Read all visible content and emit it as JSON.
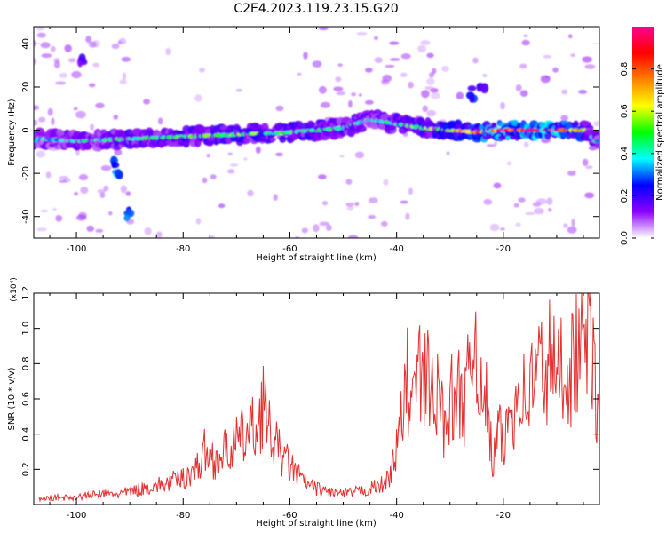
{
  "title": "C2E4.2023.119.23.15.G20",
  "chart_data": [
    {
      "type": "heatmap",
      "xlabel": "Height of straight line (km)",
      "ylabel": "Frequency (Hz)",
      "xlim": [
        -108,
        -2
      ],
      "ylim": [
        -50,
        48
      ],
      "xticks": [
        -100,
        -80,
        -60,
        -40,
        -20
      ],
      "yticks": [
        -40,
        -20,
        0,
        20,
        40
      ],
      "colorbar": {
        "label": "Normalized spectral amplitude",
        "range": [
          0,
          1
        ],
        "ticks": [
          0.0,
          0.2,
          0.4,
          0.6,
          0.8
        ],
        "colormap": [
          "#ffffff",
          "#8b00ff",
          "#0000ff",
          "#00ffff",
          "#00ff00",
          "#ffff00",
          "#ff8000",
          "#ff0000",
          "#ff0090"
        ]
      },
      "ridge": [
        {
          "x": -107,
          "y": -4,
          "v": 0.35
        },
        {
          "x": -100,
          "y": -5,
          "v": 0.4
        },
        {
          "x": -90,
          "y": -4,
          "v": 0.45
        },
        {
          "x": -80,
          "y": -3,
          "v": 0.5
        },
        {
          "x": -70,
          "y": -2,
          "v": 0.55
        },
        {
          "x": -60,
          "y": -1,
          "v": 0.5
        },
        {
          "x": -50,
          "y": 1,
          "v": 0.45
        },
        {
          "x": -45,
          "y": 5,
          "v": 0.4
        },
        {
          "x": -40,
          "y": 3,
          "v": 0.45
        },
        {
          "x": -35,
          "y": 1,
          "v": 0.55
        },
        {
          "x": -30,
          "y": 0,
          "v": 0.65
        },
        {
          "x": -25,
          "y": -1,
          "v": 0.75
        },
        {
          "x": -20,
          "y": 0,
          "v": 0.95
        },
        {
          "x": -10,
          "y": 0,
          "v": 0.95
        },
        {
          "x": -4,
          "y": 0,
          "v": 0.6
        },
        {
          "x": -3,
          "y": -5,
          "v": 0.4
        }
      ],
      "features": [
        {
          "x": -92,
          "y": -20,
          "v": 0.35
        },
        {
          "x": -93,
          "y": -15,
          "v": 0.3
        },
        {
          "x": -90,
          "y": -39,
          "v": 0.3
        },
        {
          "x": -99,
          "y": 32,
          "v": 0.2
        },
        {
          "x": -26,
          "y": 17,
          "v": 0.3
        },
        {
          "x": -24,
          "y": 18,
          "v": 0.25
        }
      ]
    },
    {
      "type": "line",
      "xlabel": "Height of straight line (km)",
      "ylabel": "SNR (10 * v/v)",
      "scale_label": "(x10⁴)",
      "xlim": [
        -108,
        -2
      ],
      "ylim": [
        0,
        1.2
      ],
      "xticks": [
        -100,
        -80,
        -60,
        -40,
        -20
      ],
      "yticks": [
        0.2,
        0.4,
        0.6,
        0.8,
        1.0,
        1.2
      ],
      "color": "#e53030",
      "series": [
        {
          "x": [
            -107,
            -104,
            -101,
            -98,
            -95,
            -92,
            -89,
            -86,
            -83,
            -80,
            -77,
            -76,
            -74,
            -72,
            -70,
            -68,
            -66,
            -65,
            -64,
            -62,
            -60,
            -58,
            -56,
            -54,
            -52,
            -50,
            -48,
            -46,
            -44,
            -42,
            -40,
            -39,
            -38,
            -37,
            -36,
            -35,
            -34,
            -33,
            -32,
            -31,
            -30,
            -29,
            -28,
            -27,
            -26,
            -25,
            -24,
            -23,
            -22,
            -21,
            -20,
            -19,
            -18,
            -17,
            -16,
            -15,
            -14,
            -13,
            -12,
            -11,
            -10,
            -9,
            -8,
            -7,
            -6,
            -5,
            -4,
            -3,
            -2
          ],
          "y": [
            0.03,
            0.04,
            0.04,
            0.05,
            0.06,
            0.06,
            0.08,
            0.1,
            0.12,
            0.15,
            0.22,
            0.3,
            0.25,
            0.3,
            0.35,
            0.4,
            0.45,
            0.6,
            0.42,
            0.3,
            0.22,
            0.15,
            0.1,
            0.08,
            0.07,
            0.06,
            0.07,
            0.08,
            0.1,
            0.12,
            0.3,
            0.5,
            0.7,
            0.55,
            0.8,
            0.6,
            0.85,
            0.45,
            0.7,
            0.4,
            0.65,
            0.5,
            0.7,
            0.55,
            0.9,
            0.98,
            0.5,
            0.6,
            0.2,
            0.45,
            0.3,
            0.5,
            0.55,
            0.7,
            0.6,
            0.65,
            0.75,
            0.8,
            0.7,
            0.9,
            0.65,
            0.85,
            0.75,
            0.8,
            0.88,
            0.9,
            1.2,
            0.7,
            0.45
          ]
        }
      ]
    }
  ]
}
